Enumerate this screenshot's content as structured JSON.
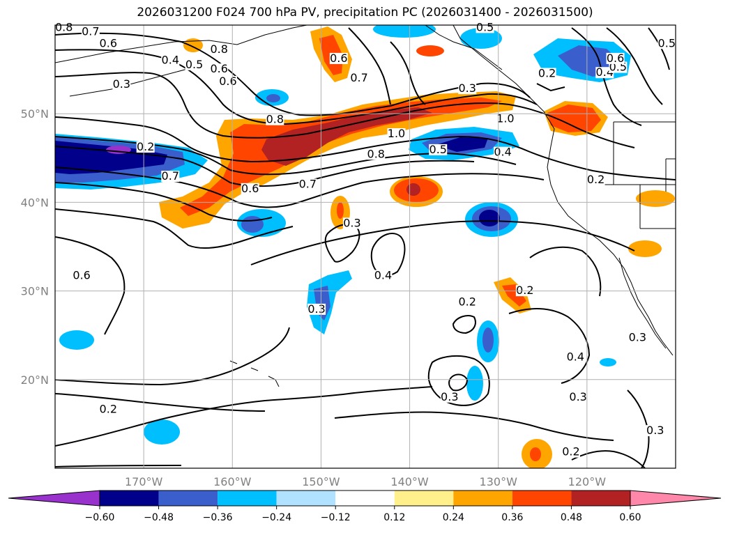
{
  "title": "2026031200 F024 700 hPa PV, precipitation PC (2026031400 - 2026031500)",
  "map": {
    "lon_range": [
      -180,
      -110
    ],
    "lat_range": [
      10,
      60
    ],
    "lat_ticks": [
      {
        "value": 20,
        "label": "20°N"
      },
      {
        "value": 30,
        "label": "30°N"
      },
      {
        "value": 40,
        "label": "40°N"
      },
      {
        "value": 50,
        "label": "50°N"
      }
    ],
    "lon_ticks": [
      {
        "value": -170,
        "label": "170°W"
      },
      {
        "value": -160,
        "label": "160°W"
      },
      {
        "value": -150,
        "label": "150°W"
      },
      {
        "value": -140,
        "label": "140°W"
      },
      {
        "value": -130,
        "label": "130°W"
      },
      {
        "value": -120,
        "label": "120°W"
      }
    ],
    "grid": true
  },
  "colorbar": {
    "ticks": [
      "−0.60",
      "−0.48",
      "−0.36",
      "−0.24",
      "−0.12",
      "0.12",
      "0.24",
      "0.36",
      "0.48",
      "0.60"
    ],
    "colors": [
      "#9932cc",
      "#00008b",
      "#3a5fcd",
      "#00bfff",
      "#b0e2ff",
      "#ffffff",
      "#fff08c",
      "#ffa500",
      "#ff4500",
      "#b22222",
      "#ff88aa"
    ],
    "extend": "both"
  },
  "contour_labels": [
    {
      "text": "0.8",
      "lon": -179,
      "lat": 59.5
    },
    {
      "text": "0.7",
      "lon": -176,
      "lat": 59
    },
    {
      "text": "0.6",
      "lon": -174,
      "lat": 57.7
    },
    {
      "text": "0.8",
      "lon": -161.5,
      "lat": 57
    },
    {
      "text": "0.4",
      "lon": -167,
      "lat": 55.8
    },
    {
      "text": "0.5",
      "lon": -164.3,
      "lat": 55.3
    },
    {
      "text": "0.6",
      "lon": -161.5,
      "lat": 54.8
    },
    {
      "text": "0.6",
      "lon": -160.5,
      "lat": 53.4
    },
    {
      "text": "0.3",
      "lon": -172.5,
      "lat": 53.1
    },
    {
      "text": "0.6",
      "lon": -148,
      "lat": 56
    },
    {
      "text": "0.7",
      "lon": -145.7,
      "lat": 53.8
    },
    {
      "text": "0.5",
      "lon": -131.5,
      "lat": 59.5
    },
    {
      "text": "0.2",
      "lon": -124.5,
      "lat": 54.3
    },
    {
      "text": "0.3",
      "lon": -133.5,
      "lat": 52.6
    },
    {
      "text": "0.4",
      "lon": -118,
      "lat": 54.4
    },
    {
      "text": "0.5",
      "lon": -116.5,
      "lat": 55
    },
    {
      "text": "0.6",
      "lon": -116.8,
      "lat": 56
    },
    {
      "text": "0.5",
      "lon": -111,
      "lat": 57.7
    },
    {
      "text": "0.8",
      "lon": -155.2,
      "lat": 49.1
    },
    {
      "text": "1.0",
      "lon": -141.5,
      "lat": 47.5
    },
    {
      "text": "1.0",
      "lon": -129.2,
      "lat": 49.2
    },
    {
      "text": "0.8",
      "lon": -143.8,
      "lat": 45.2
    },
    {
      "text": "0.5",
      "lon": -136.8,
      "lat": 45.7
    },
    {
      "text": "0.4",
      "lon": -129.5,
      "lat": 45.4
    },
    {
      "text": "0.2",
      "lon": -169.8,
      "lat": 46
    },
    {
      "text": "0.7",
      "lon": -167,
      "lat": 42.7
    },
    {
      "text": "0.6",
      "lon": -158,
      "lat": 41.3
    },
    {
      "text": "0.7",
      "lon": -151.5,
      "lat": 41.8
    },
    {
      "text": "0.2",
      "lon": -119,
      "lat": 42.3
    },
    {
      "text": "0.3",
      "lon": -146.5,
      "lat": 37.4
    },
    {
      "text": "0.4",
      "lon": -143,
      "lat": 31.5
    },
    {
      "text": "0.6",
      "lon": -177,
      "lat": 31.5
    },
    {
      "text": "0.3",
      "lon": -150.5,
      "lat": 27.7
    },
    {
      "text": "0.2",
      "lon": -133.5,
      "lat": 28.5
    },
    {
      "text": "0.2",
      "lon": -127,
      "lat": 29.8
    },
    {
      "text": "0.4",
      "lon": -121.3,
      "lat": 22.3
    },
    {
      "text": "0.3",
      "lon": -121,
      "lat": 17.8
    },
    {
      "text": "0.3",
      "lon": -135.5,
      "lat": 17.8
    },
    {
      "text": "0.3",
      "lon": -114.3,
      "lat": 24.5
    },
    {
      "text": "0.3",
      "lon": -112.3,
      "lat": 14
    },
    {
      "text": "0.2",
      "lon": -174,
      "lat": 16.4
    },
    {
      "text": "0.2",
      "lon": -121.8,
      "lat": 11.6
    }
  ]
}
